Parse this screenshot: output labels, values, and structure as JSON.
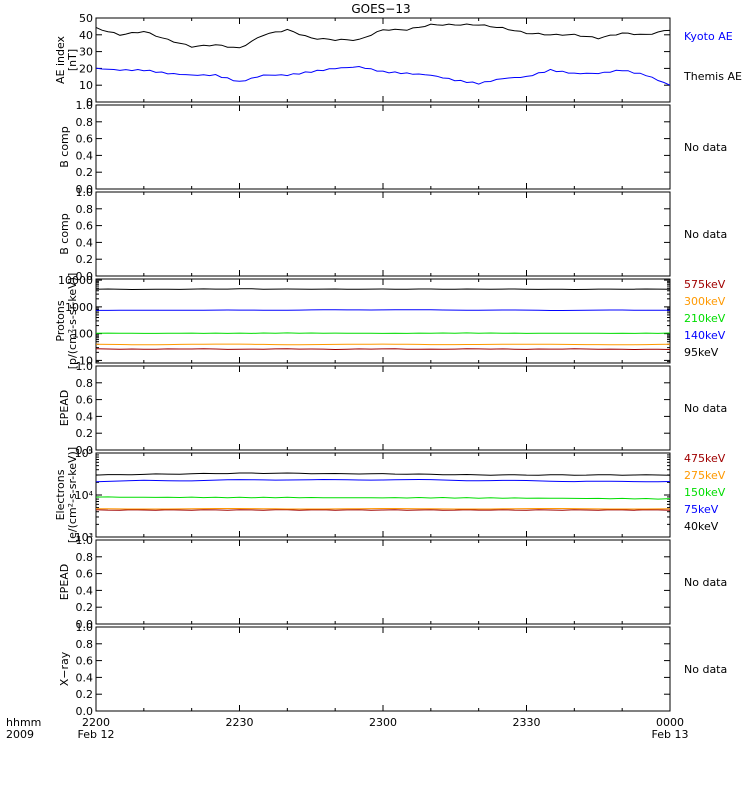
{
  "title": "GOES−13",
  "x_axis": {
    "ticks": [
      "2200",
      "2230",
      "2300",
      "2330",
      "0000"
    ],
    "row_label_top": "hhmm",
    "row_label_bottom": "2009",
    "date_start": "Feb 12",
    "date_end": "Feb 13"
  },
  "chart_data": [
    {
      "type": "line",
      "panel": "ae",
      "ylabel": "AE index",
      "ylabel_unit": "[nT]",
      "ylim": [
        0,
        50
      ],
      "yticks": [
        "0",
        "10",
        "20",
        "30",
        "40",
        "50"
      ],
      "x": [
        "22:00",
        "22:05",
        "22:10",
        "22:15",
        "22:20",
        "22:25",
        "22:30",
        "22:35",
        "22:40",
        "22:45",
        "22:50",
        "22:55",
        "23:00",
        "23:05",
        "23:10",
        "23:15",
        "23:20",
        "23:25",
        "23:30",
        "23:35",
        "23:40",
        "23:45",
        "23:50",
        "23:55",
        "00:00"
      ],
      "series": [
        {
          "name": "Kyoto AE",
          "color": "#000000",
          "values": [
            44,
            40,
            42,
            37,
            33,
            34,
            32,
            40,
            43,
            38,
            37,
            37,
            43,
            43,
            46,
            46,
            46,
            44,
            41,
            40,
            40,
            38,
            41,
            40,
            43
          ]
        },
        {
          "name": "Themis AE",
          "color": "#0000ff",
          "values": [
            20,
            19,
            19,
            17,
            16,
            16,
            12,
            16,
            16,
            18,
            20,
            21,
            18,
            17,
            16,
            13,
            11,
            14,
            15,
            19,
            17,
            17,
            19,
            16,
            10
          ]
        }
      ],
      "legend_placement": "right"
    },
    {
      "type": "line",
      "panel": "b-comp-1",
      "ylabel": "B comp",
      "ylim": [
        0,
        1
      ],
      "yticks": [
        "0.0",
        "0.2",
        "0.4",
        "0.6",
        "0.8",
        "1.0"
      ],
      "status": "No data"
    },
    {
      "type": "line",
      "panel": "b-comp-2",
      "ylabel": "B comp",
      "ylim": [
        0,
        1
      ],
      "yticks": [
        "0.0",
        "0.2",
        "0.4",
        "0.6",
        "0.8",
        "1.0"
      ],
      "status": "No data"
    },
    {
      "type": "line",
      "panel": "protons",
      "ylabel": "Protons",
      "ylabel_unit": "[p/(cm²-s-sr-keV)]",
      "yscale": "log",
      "ylim": [
        8,
        11000
      ],
      "yticks": [
        "10",
        "100",
        "1000",
        "10000"
      ],
      "x": [
        "22:00",
        "22:10",
        "22:20",
        "22:30",
        "22:40",
        "22:50",
        "23:00",
        "23:10",
        "23:20",
        "23:30",
        "23:40",
        "23:50",
        "00:00"
      ],
      "series": [
        {
          "name": "575keV",
          "color": "#a00000",
          "values": [
            27,
            26,
            27,
            26,
            27,
            26,
            27,
            26,
            27,
            26,
            27,
            26,
            26
          ]
        },
        {
          "name": "300keV",
          "color": "#ff9900",
          "values": [
            40,
            39,
            40,
            40,
            39,
            40,
            40,
            39,
            40,
            40,
            39,
            39,
            40
          ]
        },
        {
          "name": "210keV",
          "color": "#00dd00",
          "values": [
            105,
            102,
            104,
            103,
            105,
            104,
            103,
            104,
            105,
            103,
            104,
            103,
            104
          ]
        },
        {
          "name": "140keV",
          "color": "#0000ff",
          "values": [
            750,
            740,
            760,
            750,
            760,
            770,
            780,
            770,
            760,
            750,
            740,
            760,
            750
          ]
        },
        {
          "name": "95keV",
          "color": "#000000",
          "values": [
            4600,
            4500,
            4600,
            4700,
            4600,
            4600,
            4600,
            4600,
            4600,
            4600,
            4500,
            4600,
            4600
          ]
        }
      ],
      "legend_placement": "right"
    },
    {
      "type": "line",
      "panel": "epead-1",
      "ylabel": "EPEAD",
      "ylim": [
        0,
        1
      ],
      "yticks": [
        "0.0",
        "0.2",
        "0.4",
        "0.6",
        "0.8",
        "1.0"
      ],
      "status": "No data"
    },
    {
      "type": "line",
      "panel": "electrons",
      "ylabel": "Electrons",
      "ylabel_unit": "[e/(cm²-s-sr-keV)]",
      "yscale": "log",
      "ylim": [
        1000,
        100000
      ],
      "yticks": [
        "10³",
        "10⁴",
        "10⁵"
      ],
      "x": [
        "22:00",
        "22:10",
        "22:20",
        "22:30",
        "22:40",
        "22:50",
        "23:00",
        "23:10",
        "23:20",
        "23:30",
        "23:40",
        "23:50",
        "00:00"
      ],
      "series": [
        {
          "name": "475keV",
          "color": "#a00000",
          "values": [
            4400,
            4400,
            4400,
            4400,
            4400,
            4400,
            4400,
            4400,
            4400,
            4400,
            4400,
            4400,
            4400
          ]
        },
        {
          "name": "275keV",
          "color": "#ff9900",
          "values": [
            4700,
            4700,
            4700,
            4700,
            4700,
            4700,
            4700,
            4700,
            4700,
            4700,
            4700,
            4700,
            4700
          ]
        },
        {
          "name": "150keV",
          "color": "#00dd00",
          "values": [
            9000,
            8800,
            8800,
            8700,
            8700,
            8600,
            8600,
            8600,
            8500,
            8400,
            8300,
            8200,
            8100
          ]
        },
        {
          "name": "75keV",
          "color": "#0000ff",
          "values": [
            21000,
            22000,
            22000,
            23000,
            23000,
            23000,
            23000,
            23000,
            22000,
            22000,
            21000,
            21000,
            21000
          ]
        },
        {
          "name": "40keV",
          "color": "#000000",
          "values": [
            30000,
            31000,
            32000,
            33000,
            33000,
            32000,
            32000,
            31000,
            30000,
            30000,
            30000,
            30000,
            30000
          ]
        }
      ],
      "legend_placement": "right"
    },
    {
      "type": "line",
      "panel": "epead-2",
      "ylabel": "EPEAD",
      "ylim": [
        0,
        1
      ],
      "yticks": [
        "0.0",
        "0.2",
        "0.4",
        "0.6",
        "0.8",
        "1.0"
      ],
      "status": "No data"
    },
    {
      "type": "line",
      "panel": "x-ray",
      "ylabel": "X−ray",
      "ylim": [
        0,
        1
      ],
      "yticks": [
        "0.0",
        "0.2",
        "0.4",
        "0.6",
        "0.8",
        "1.0"
      ],
      "status": "No data"
    }
  ]
}
